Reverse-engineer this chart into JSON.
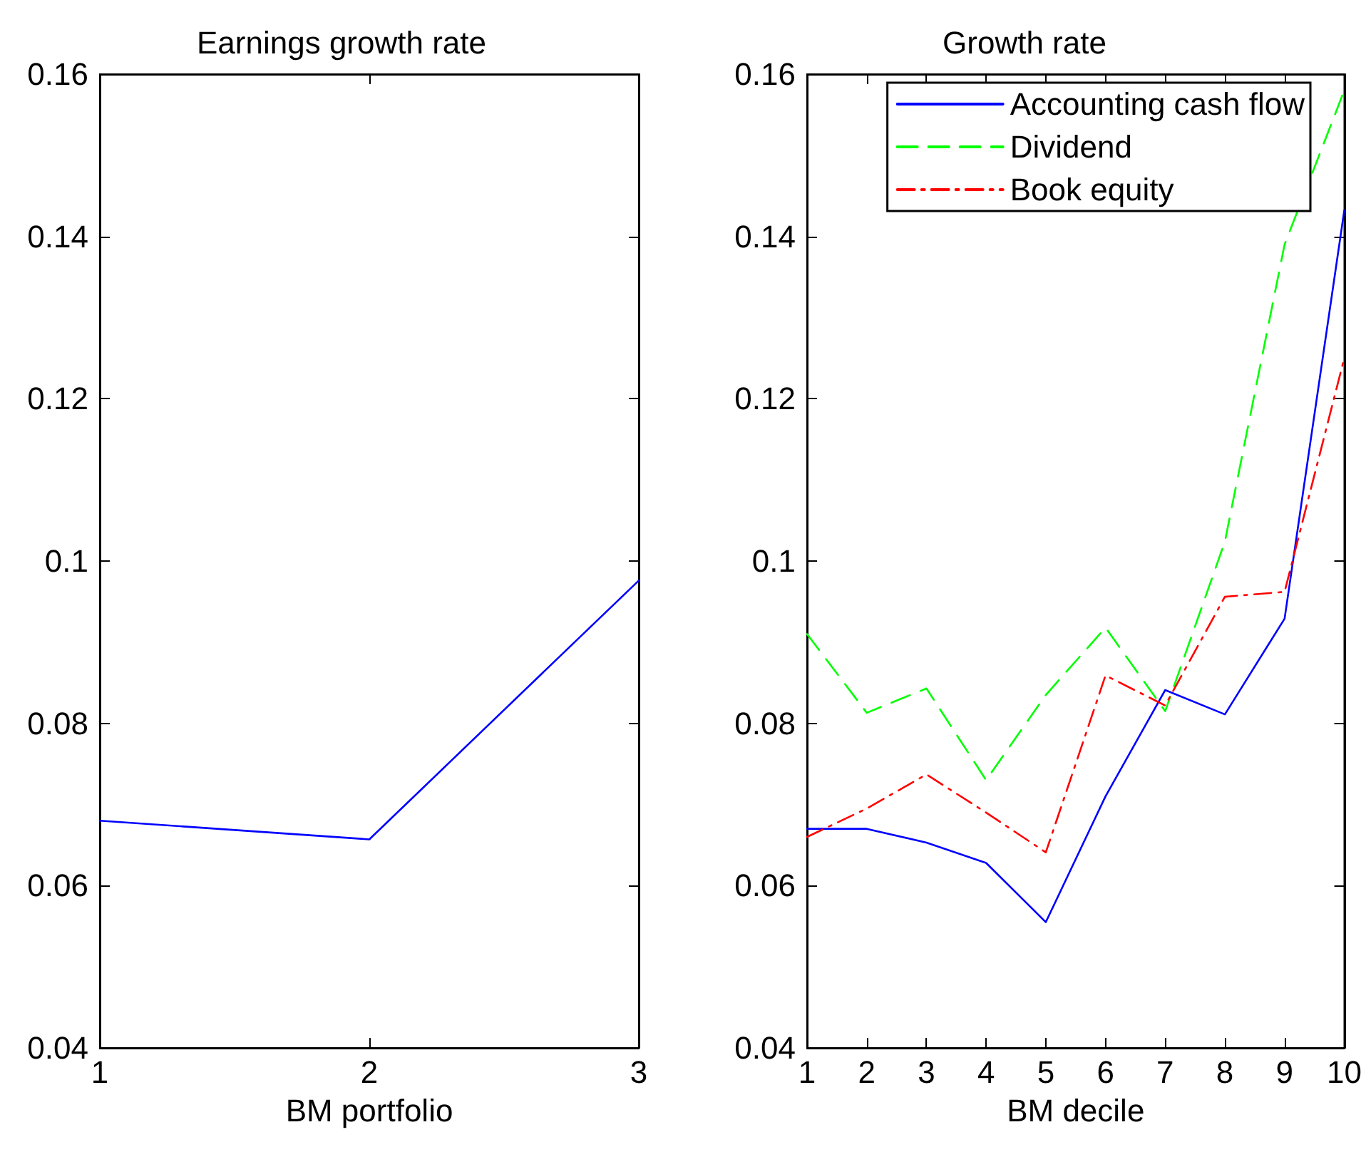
{
  "chart_data": [
    {
      "type": "line",
      "title": "Earnings growth rate",
      "xlabel": "BM portfolio",
      "x": [
        1,
        2,
        3
      ],
      "xlim": [
        1,
        3
      ],
      "xticks": [
        1,
        2,
        3
      ],
      "ylim": [
        0.04,
        0.16
      ],
      "yticks": [
        0.04,
        0.06,
        0.08,
        0.1,
        0.12,
        0.14,
        0.16
      ],
      "grid": false,
      "legend": false,
      "marker": "none",
      "series": [
        {
          "color": "#0000ff",
          "line_style": "solid",
          "values": [
            0.068,
            0.0657,
            0.0976
          ]
        }
      ]
    },
    {
      "type": "line",
      "title": "Growth rate",
      "xlabel": "BM decile",
      "x": [
        1,
        2,
        3,
        4,
        5,
        6,
        7,
        8,
        9,
        10
      ],
      "xlim": [
        1,
        10
      ],
      "xticks": [
        1,
        2,
        3,
        4,
        5,
        6,
        7,
        8,
        9,
        10
      ],
      "ylim": [
        0.04,
        0.16
      ],
      "yticks": [
        0.04,
        0.06,
        0.08,
        0.1,
        0.12,
        0.14,
        0.16
      ],
      "grid": false,
      "legend": "top right",
      "marker": "none",
      "series": [
        {
          "name": "Accounting cash flow",
          "color": "#0000ff",
          "line_style": "solid",
          "values": [
            0.067,
            0.067,
            0.0653,
            0.0628,
            0.0555,
            0.071,
            0.0841,
            0.0811,
            0.0929,
            0.1432
          ]
        },
        {
          "name": "Dividend",
          "color": "#00ff00",
          "line_style": "dashed",
          "values": [
            0.091,
            0.0813,
            0.0843,
            0.073,
            0.0835,
            0.0918,
            0.0815,
            0.1024,
            0.139,
            0.158
          ]
        },
        {
          "name": "Book equity",
          "color": "#ff0000",
          "line_style": "dotted",
          "values": [
            0.066,
            0.0695,
            0.0737,
            0.069,
            0.0641,
            0.0859,
            0.0822,
            0.0956,
            0.0962,
            0.125
          ]
        }
      ]
    }
  ]
}
